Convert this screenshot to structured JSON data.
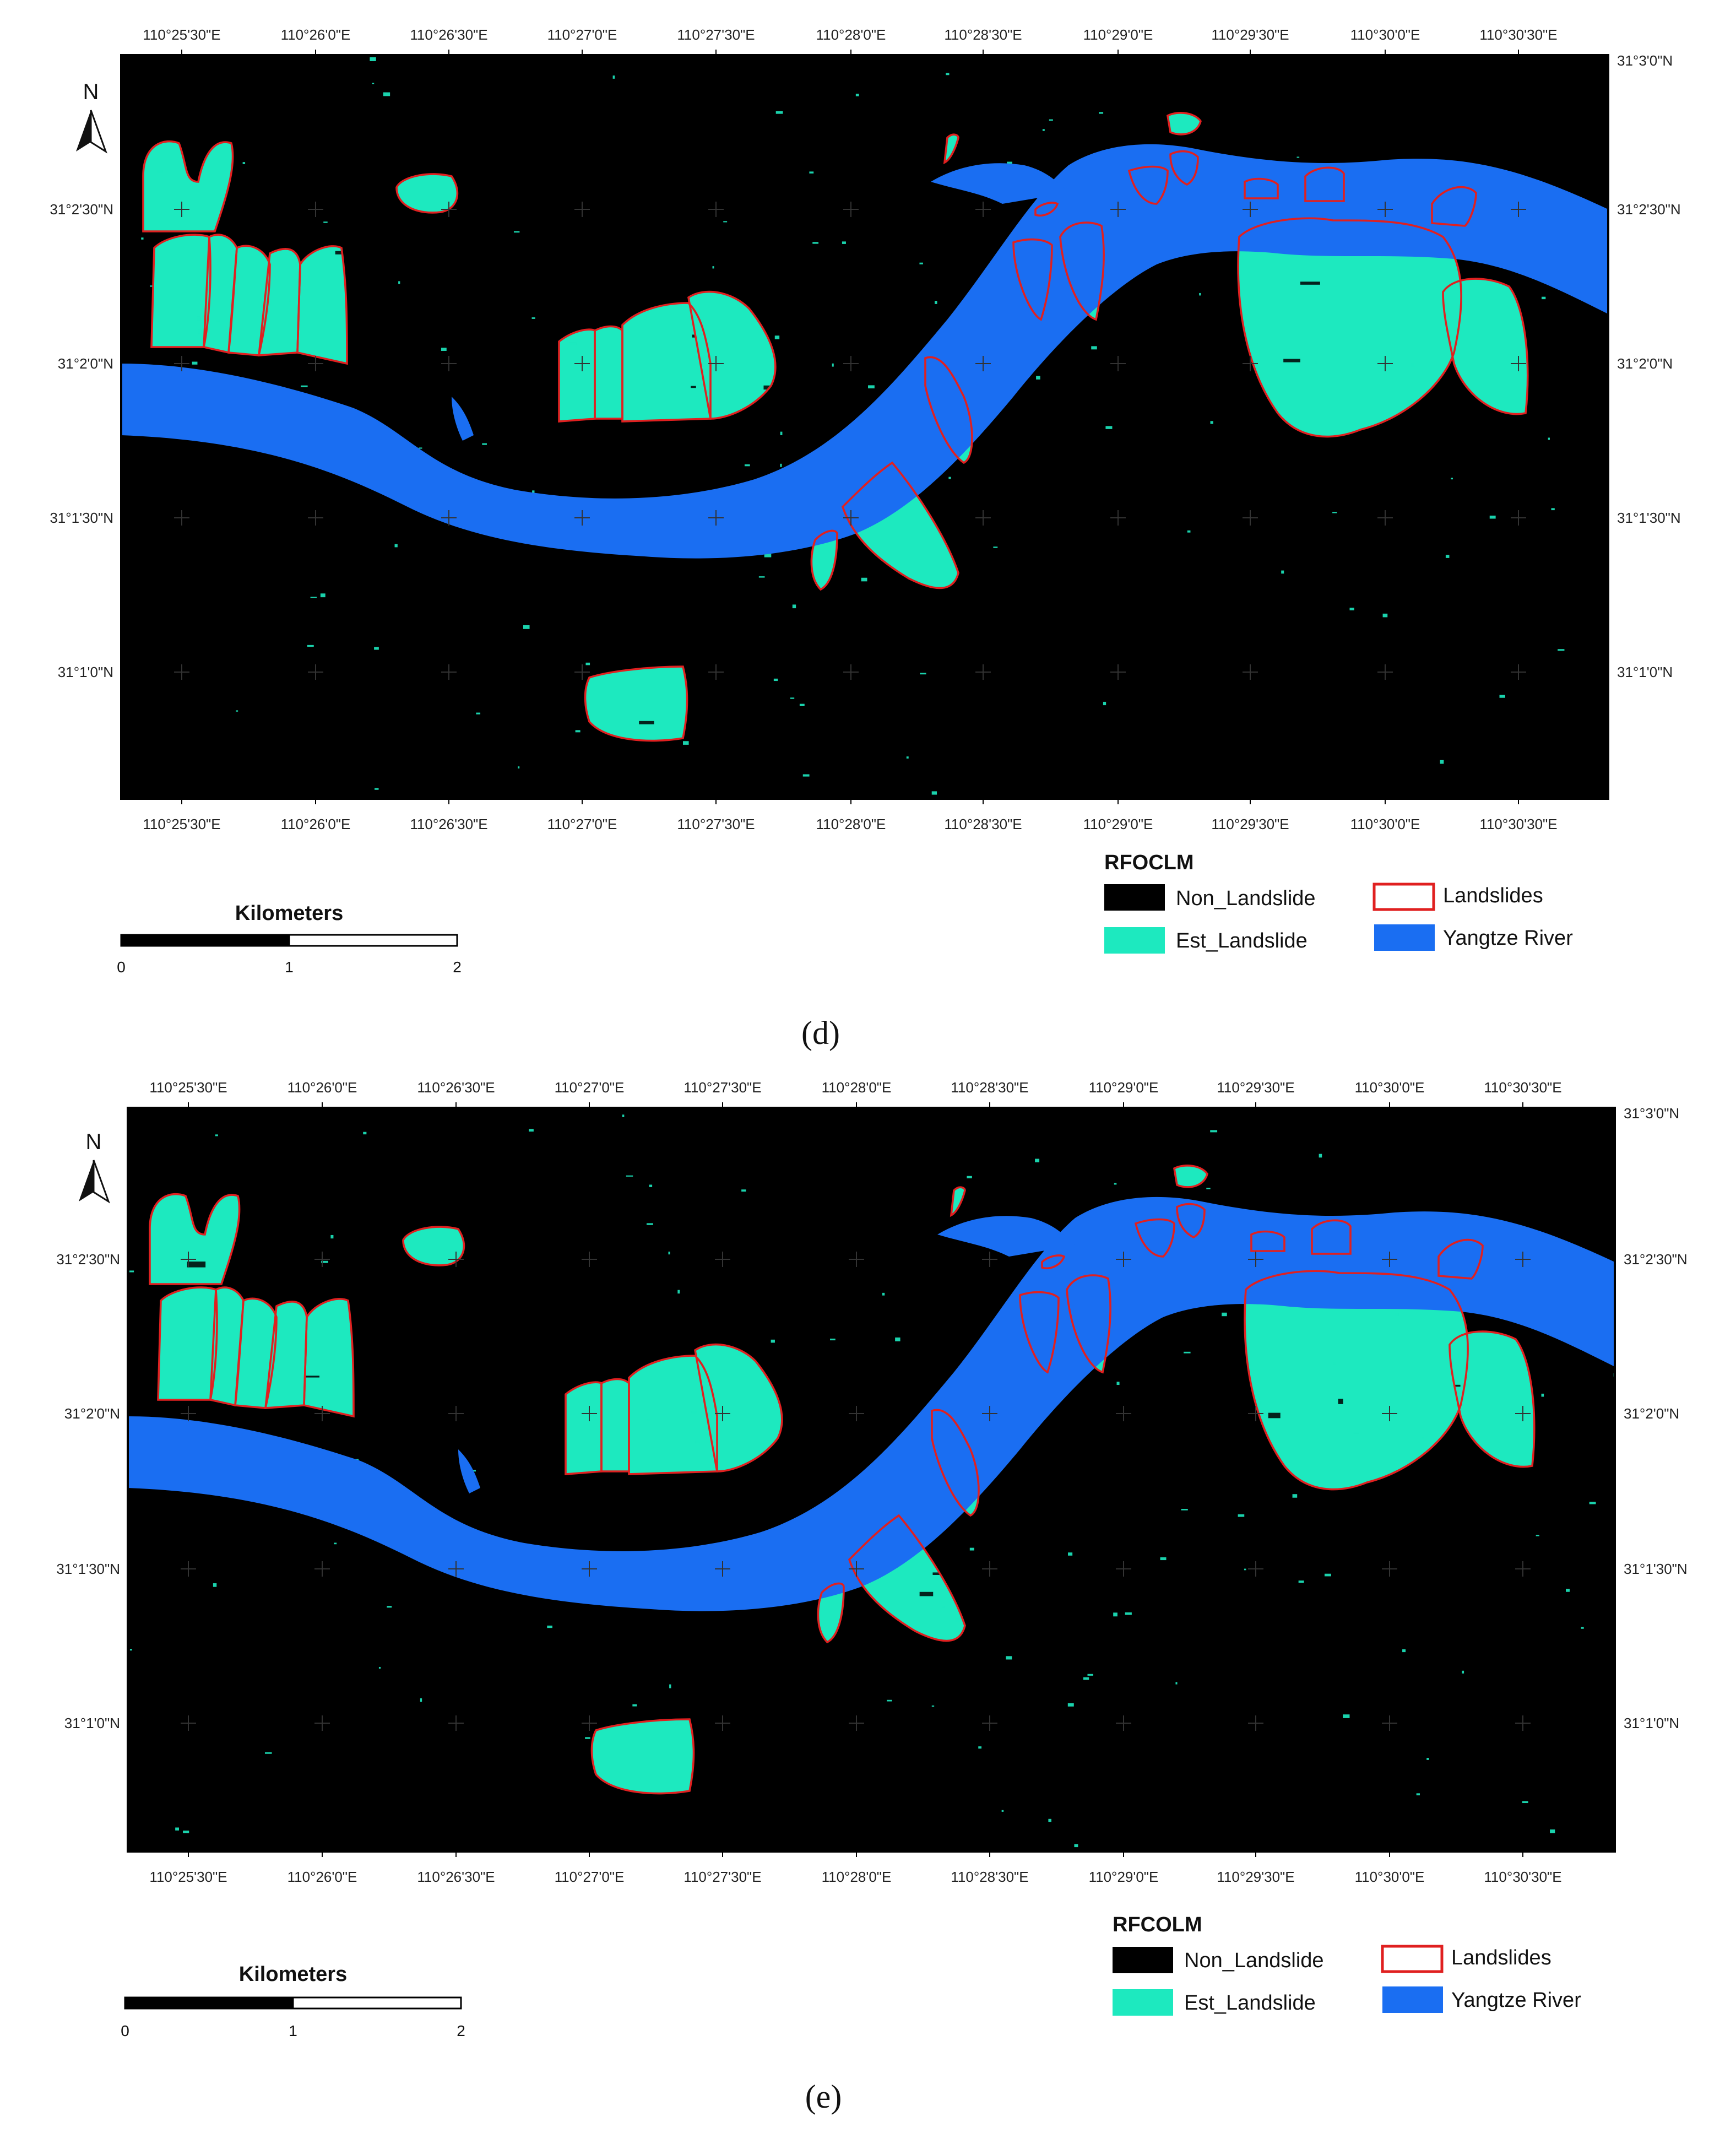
{
  "colors": {
    "non_landslide": "#000000",
    "est_landslide": "#1de9bf",
    "landslides_outline": "#e02020",
    "river": "#1a6ef2"
  },
  "north_label": "N",
  "panels": [
    {
      "caption": "(d)",
      "legend": {
        "title": "RFOCLM",
        "items": [
          "Non_Landslide",
          "Est_Landslide",
          "Landslides",
          "Yangtze River"
        ]
      },
      "scale": {
        "title": "Kilometers",
        "ticks": [
          "0",
          "1",
          "2"
        ]
      },
      "lon_labels": [
        "110°25'30\"E",
        "110°26'0\"E",
        "110°26'30\"E",
        "110°27'0\"E",
        "110°27'30\"E",
        "110°28'0\"E",
        "110°28'30\"E",
        "110°29'0\"E",
        "110°29'30\"E",
        "110°30'0\"E",
        "110°30'30\"E"
      ],
      "lat_labels_left": [
        "31°2'30\"N",
        "31°2'0\"N",
        "31°1'30\"N",
        "31°1'0\"N"
      ],
      "lat_labels_right": [
        "31°3'0\"N",
        "31°2'30\"N",
        "31°2'0\"N",
        "31°1'30\"N",
        "31°1'0\"N"
      ]
    },
    {
      "caption": "(e)",
      "legend": {
        "title": "RFCOLM",
        "items": [
          "Non_Landslide",
          "Est_Landslide",
          "Landslides",
          "Yangtze River"
        ]
      },
      "scale": {
        "title": "Kilometers",
        "ticks": [
          "0",
          "1",
          "2"
        ]
      },
      "lon_labels": [
        "110°25'30\"E",
        "110°26'0\"E",
        "110°26'30\"E",
        "110°27'0\"E",
        "110°27'30\"E",
        "110°28'0\"E",
        "110°28'30\"E",
        "110°29'0\"E",
        "110°29'30\"E",
        "110°30'0\"E",
        "110°30'30\"E"
      ],
      "lat_labels_left": [
        "31°2'30\"N",
        "31°2'0\"N",
        "31°1'30\"N",
        "31°1'0\"N"
      ],
      "lat_labels_right": [
        "31°3'0\"N",
        "31°2'30\"N",
        "31°2'0\"N",
        "31°1'30\"N",
        "31°1'0\"N"
      ]
    }
  ]
}
